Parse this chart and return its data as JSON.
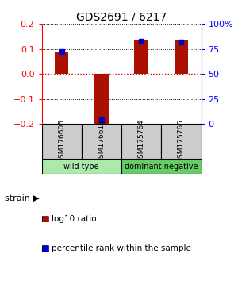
{
  "title": "GDS2691 / 6217",
  "samples": [
    "GSM176606",
    "GSM176611",
    "GSM175764",
    "GSM175765"
  ],
  "log10_ratio": [
    0.09,
    -0.205,
    0.135,
    0.135
  ],
  "percentile_rank": [
    0.72,
    0.04,
    0.83,
    0.82
  ],
  "ylim": [
    -0.2,
    0.2
  ],
  "yticks_left": [
    -0.2,
    -0.1,
    0.0,
    0.1,
    0.2
  ],
  "yticks_right": [
    0,
    25,
    50,
    75,
    100
  ],
  "groups": [
    {
      "label": "wild type",
      "color": "#aaeaaa",
      "span": [
        0,
        2
      ]
    },
    {
      "label": "dominant negative",
      "color": "#66cc66",
      "span": [
        2,
        4
      ]
    }
  ],
  "bar_color": "#aa1100",
  "dot_color": "#0000cc",
  "zero_line_color": "#cc0000",
  "sample_box_color": "#cccccc",
  "legend_red_label": "log10 ratio",
  "legend_blue_label": "percentile rank within the sample",
  "strain_label": "strain",
  "bar_width": 0.35
}
